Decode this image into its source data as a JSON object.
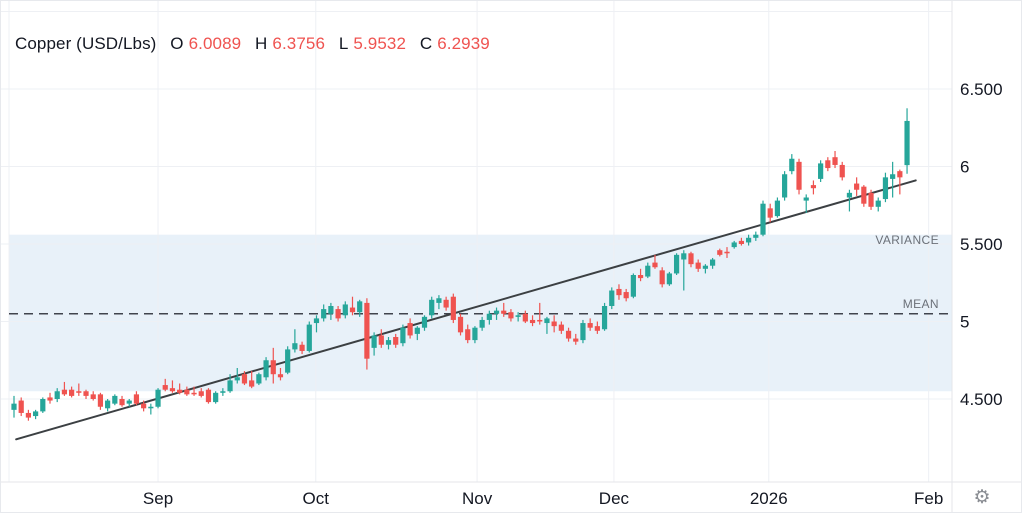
{
  "legend": {
    "symbol": "Copper (USD/Lbs)",
    "fields": [
      {
        "label": "O",
        "value": "6.0089"
      },
      {
        "label": "H",
        "value": "6.3756"
      },
      {
        "label": "L",
        "value": "5.9532"
      },
      {
        "label": "C",
        "value": "6.2939"
      }
    ]
  },
  "icons": {
    "settings_gear": "⚙"
  },
  "colors": {
    "up": "#26a69a",
    "down": "#ef5350",
    "band_fill": "#e8f1f9",
    "mean_line": "#40444d",
    "trend_line": "#3c4043",
    "grid": "#eef0f4",
    "axis_text": "#131722",
    "overlay_label_text": "#6b7078",
    "legend_value_text": "#ef5350",
    "separator": "#e4e6ea",
    "gear": "#8a8d93"
  },
  "chart_data": {
    "type": "candlestick",
    "title": "Copper (USD/Lbs)",
    "ohlc_display": {
      "open": "6.0089",
      "high": "6.3756",
      "low": "5.9532",
      "close": "6.2939"
    },
    "y_axis": {
      "side": "right",
      "ticks": [
        {
          "label": "6.500",
          "value": 6.5
        },
        {
          "label": "6",
          "value": 6.0
        },
        {
          "label": "5.500",
          "value": 5.5
        },
        {
          "label": "5",
          "value": 5.0
        },
        {
          "label": "4.500",
          "value": 4.5
        }
      ],
      "grid_values": [
        7.0,
        6.5,
        6.0,
        5.5,
        5.0,
        4.5
      ],
      "visible_range": [
        3.97,
        7.07
      ]
    },
    "x_axis": {
      "ticks": [
        {
          "label": "",
          "index": -0.69
        },
        {
          "label": "Sep",
          "index": 20.0
        },
        {
          "label": "Oct",
          "index": 41.9
        },
        {
          "label": "Nov",
          "index": 64.3
        },
        {
          "label": "Dec",
          "index": 83.3
        },
        {
          "label": "2026",
          "index": 104.8
        },
        {
          "label": "Feb",
          "index": 127.0
        }
      ]
    },
    "overlays": {
      "variance_band": {
        "label": "VARIANCE",
        "top": 5.56,
        "bottom": 4.55
      },
      "mean_line": {
        "label": "MEAN",
        "value": 5.05
      },
      "trend_line": {
        "from": {
          "index": 0.3,
          "value": 4.24
        },
        "to": {
          "index": 125.2,
          "value": 5.91
        }
      }
    },
    "candles_format": [
      "open",
      "high",
      "low",
      "close"
    ],
    "candles": [
      [
        4.43,
        4.52,
        4.38,
        4.47
      ],
      [
        4.49,
        4.51,
        4.39,
        4.41
      ],
      [
        4.41,
        4.43,
        4.36,
        4.38
      ],
      [
        4.39,
        4.43,
        4.37,
        4.42
      ],
      [
        4.42,
        4.51,
        4.41,
        4.5
      ],
      [
        4.51,
        4.54,
        4.47,
        4.49
      ],
      [
        4.5,
        4.57,
        4.48,
        4.55
      ],
      [
        4.56,
        4.61,
        4.52,
        4.53
      ],
      [
        4.56,
        4.58,
        4.51,
        4.52
      ],
      [
        4.55,
        4.6,
        4.52,
        4.54
      ],
      [
        4.55,
        4.56,
        4.5,
        4.52
      ],
      [
        4.53,
        4.55,
        4.49,
        4.5
      ],
      [
        4.53,
        4.54,
        4.43,
        4.45
      ],
      [
        4.44,
        4.5,
        4.42,
        4.49
      ],
      [
        4.47,
        4.53,
        4.46,
        4.52
      ],
      [
        4.5,
        4.52,
        4.45,
        4.46
      ],
      [
        4.47,
        4.5,
        4.45,
        4.49
      ],
      [
        4.53,
        4.55,
        4.46,
        4.47
      ],
      [
        4.47,
        4.49,
        4.42,
        4.44
      ],
      [
        4.44,
        4.47,
        4.4,
        4.45
      ],
      [
        4.45,
        4.57,
        4.44,
        4.56
      ],
      [
        4.59,
        4.63,
        4.55,
        4.56
      ],
      [
        4.57,
        4.62,
        4.54,
        4.55
      ],
      [
        4.56,
        4.6,
        4.53,
        4.54
      ],
      [
        4.56,
        4.58,
        4.52,
        4.53
      ],
      [
        4.54,
        4.58,
        4.52,
        4.53
      ],
      [
        4.55,
        4.57,
        4.51,
        4.52
      ],
      [
        4.56,
        4.57,
        4.47,
        4.48
      ],
      [
        4.48,
        4.55,
        4.47,
        4.54
      ],
      [
        4.54,
        4.57,
        4.52,
        4.55
      ],
      [
        4.55,
        4.66,
        4.54,
        4.62
      ],
      [
        4.62,
        4.7,
        4.6,
        4.64
      ],
      [
        4.66,
        4.68,
        4.59,
        4.6
      ],
      [
        4.62,
        4.68,
        4.57,
        4.58
      ],
      [
        4.6,
        4.67,
        4.59,
        4.66
      ],
      [
        4.64,
        4.77,
        4.62,
        4.75
      ],
      [
        4.75,
        4.83,
        4.6,
        4.66
      ],
      [
        4.66,
        4.7,
        4.62,
        4.64
      ],
      [
        4.67,
        4.84,
        4.66,
        4.82
      ],
      [
        4.82,
        4.95,
        4.8,
        4.86
      ],
      [
        4.85,
        4.87,
        4.79,
        4.81
      ],
      [
        4.81,
        5.0,
        4.8,
        4.98
      ],
      [
        4.99,
        5.04,
        4.93,
        5.02
      ],
      [
        5.02,
        5.11,
        5.0,
        5.08
      ],
      [
        5.05,
        5.12,
        5.01,
        5.1
      ],
      [
        5.08,
        5.1,
        5.0,
        5.02
      ],
      [
        5.04,
        5.13,
        5.02,
        5.11
      ],
      [
        5.09,
        5.16,
        5.04,
        5.06
      ],
      [
        5.06,
        5.14,
        5.03,
        5.13
      ],
      [
        5.12,
        5.15,
        4.69,
        4.76
      ],
      [
        4.83,
        4.93,
        4.78,
        4.91
      ],
      [
        4.91,
        4.95,
        4.83,
        4.85
      ],
      [
        4.85,
        4.9,
        4.82,
        4.88
      ],
      [
        4.9,
        4.92,
        4.83,
        4.85
      ],
      [
        4.86,
        4.98,
        4.84,
        4.96
      ],
      [
        4.99,
        5.02,
        4.89,
        4.91
      ],
      [
        4.92,
        4.97,
        4.88,
        4.96
      ],
      [
        4.96,
        5.04,
        4.94,
        5.03
      ],
      [
        5.04,
        5.16,
        5.02,
        5.14
      ],
      [
        5.12,
        5.17,
        5.08,
        5.15
      ],
      [
        5.14,
        5.16,
        5.07,
        5.09
      ],
      [
        5.16,
        5.18,
        4.99,
        5.01
      ],
      [
        5.03,
        5.05,
        4.91,
        4.93
      ],
      [
        4.95,
        4.98,
        4.86,
        4.88
      ],
      [
        4.88,
        4.97,
        4.86,
        4.96
      ],
      [
        4.96,
        5.03,
        4.94,
        5.01
      ],
      [
        5.01,
        5.07,
        4.98,
        5.05
      ],
      [
        5.05,
        5.09,
        5.01,
        5.07
      ],
      [
        5.07,
        5.12,
        5.03,
        5.05
      ],
      [
        5.06,
        5.08,
        5.0,
        5.02
      ],
      [
        5.03,
        5.06,
        5.0,
        5.04
      ],
      [
        5.05,
        5.07,
        4.99,
        5.0
      ],
      [
        5.01,
        5.04,
        4.97,
        4.99
      ],
      [
        5.01,
        5.12,
        4.98,
        5.0
      ],
      [
        4.99,
        5.03,
        4.92,
        5.02
      ],
      [
        5.0,
        5.04,
        4.93,
        4.97
      ],
      [
        4.98,
        5.0,
        4.92,
        4.94
      ],
      [
        4.94,
        4.96,
        4.87,
        4.89
      ],
      [
        4.89,
        4.92,
        4.85,
        4.87
      ],
      [
        4.88,
        5.01,
        4.86,
        4.99
      ],
      [
        4.99,
        5.02,
        4.94,
        4.96
      ],
      [
        4.97,
        5.0,
        4.92,
        4.94
      ],
      [
        4.95,
        5.12,
        4.94,
        5.1
      ],
      [
        5.1,
        5.22,
        5.08,
        5.2
      ],
      [
        5.21,
        5.24,
        5.14,
        5.17
      ],
      [
        5.19,
        5.21,
        5.13,
        5.15
      ],
      [
        5.16,
        5.31,
        5.15,
        5.3
      ],
      [
        5.3,
        5.34,
        5.26,
        5.28
      ],
      [
        5.29,
        5.38,
        5.28,
        5.36
      ],
      [
        5.38,
        5.43,
        5.34,
        5.35
      ],
      [
        5.33,
        5.35,
        5.22,
        5.24
      ],
      [
        5.24,
        5.32,
        5.23,
        5.31
      ],
      [
        5.31,
        5.44,
        5.3,
        5.43
      ],
      [
        5.4,
        5.46,
        5.2,
        5.44
      ],
      [
        5.44,
        5.45,
        5.35,
        5.37
      ],
      [
        5.38,
        5.4,
        5.32,
        5.34
      ],
      [
        5.34,
        5.37,
        5.31,
        5.36
      ],
      [
        5.36,
        5.41,
        5.34,
        5.4
      ],
      [
        5.46,
        5.47,
        5.42,
        5.43
      ],
      [
        5.45,
        5.48,
        5.41,
        5.44
      ],
      [
        5.48,
        5.52,
        5.47,
        5.51
      ],
      [
        5.52,
        5.54,
        5.49,
        5.5
      ],
      [
        5.51,
        5.56,
        5.49,
        5.54
      ],
      [
        5.54,
        5.58,
        5.52,
        5.56
      ],
      [
        5.56,
        5.78,
        5.55,
        5.76
      ],
      [
        5.73,
        5.76,
        5.64,
        5.67
      ],
      [
        5.68,
        5.8,
        5.67,
        5.78
      ],
      [
        5.8,
        5.97,
        5.78,
        5.95
      ],
      [
        5.97,
        6.08,
        5.95,
        6.05
      ],
      [
        6.03,
        6.05,
        5.82,
        5.85
      ],
      [
        5.78,
        5.82,
        5.7,
        5.8
      ],
      [
        5.88,
        5.91,
        5.82,
        5.86
      ],
      [
        5.92,
        6.04,
        5.9,
        6.02
      ],
      [
        6.04,
        6.06,
        5.97,
        5.99
      ],
      [
        6.06,
        6.1,
        5.99,
        6.01
      ],
      [
        6.01,
        6.03,
        5.91,
        5.93
      ],
      [
        5.8,
        5.85,
        5.71,
        5.83
      ],
      [
        5.89,
        5.93,
        5.81,
        5.85
      ],
      [
        5.87,
        5.88,
        5.74,
        5.76
      ],
      [
        5.83,
        5.85,
        5.72,
        5.74
      ],
      [
        5.74,
        5.8,
        5.71,
        5.78
      ],
      [
        5.79,
        5.96,
        5.77,
        5.93
      ],
      [
        5.92,
        6.03,
        5.8,
        5.95
      ],
      [
        5.97,
        5.98,
        5.82,
        5.93
      ],
      [
        6.0089,
        6.3756,
        5.9532,
        6.2939
      ]
    ]
  }
}
